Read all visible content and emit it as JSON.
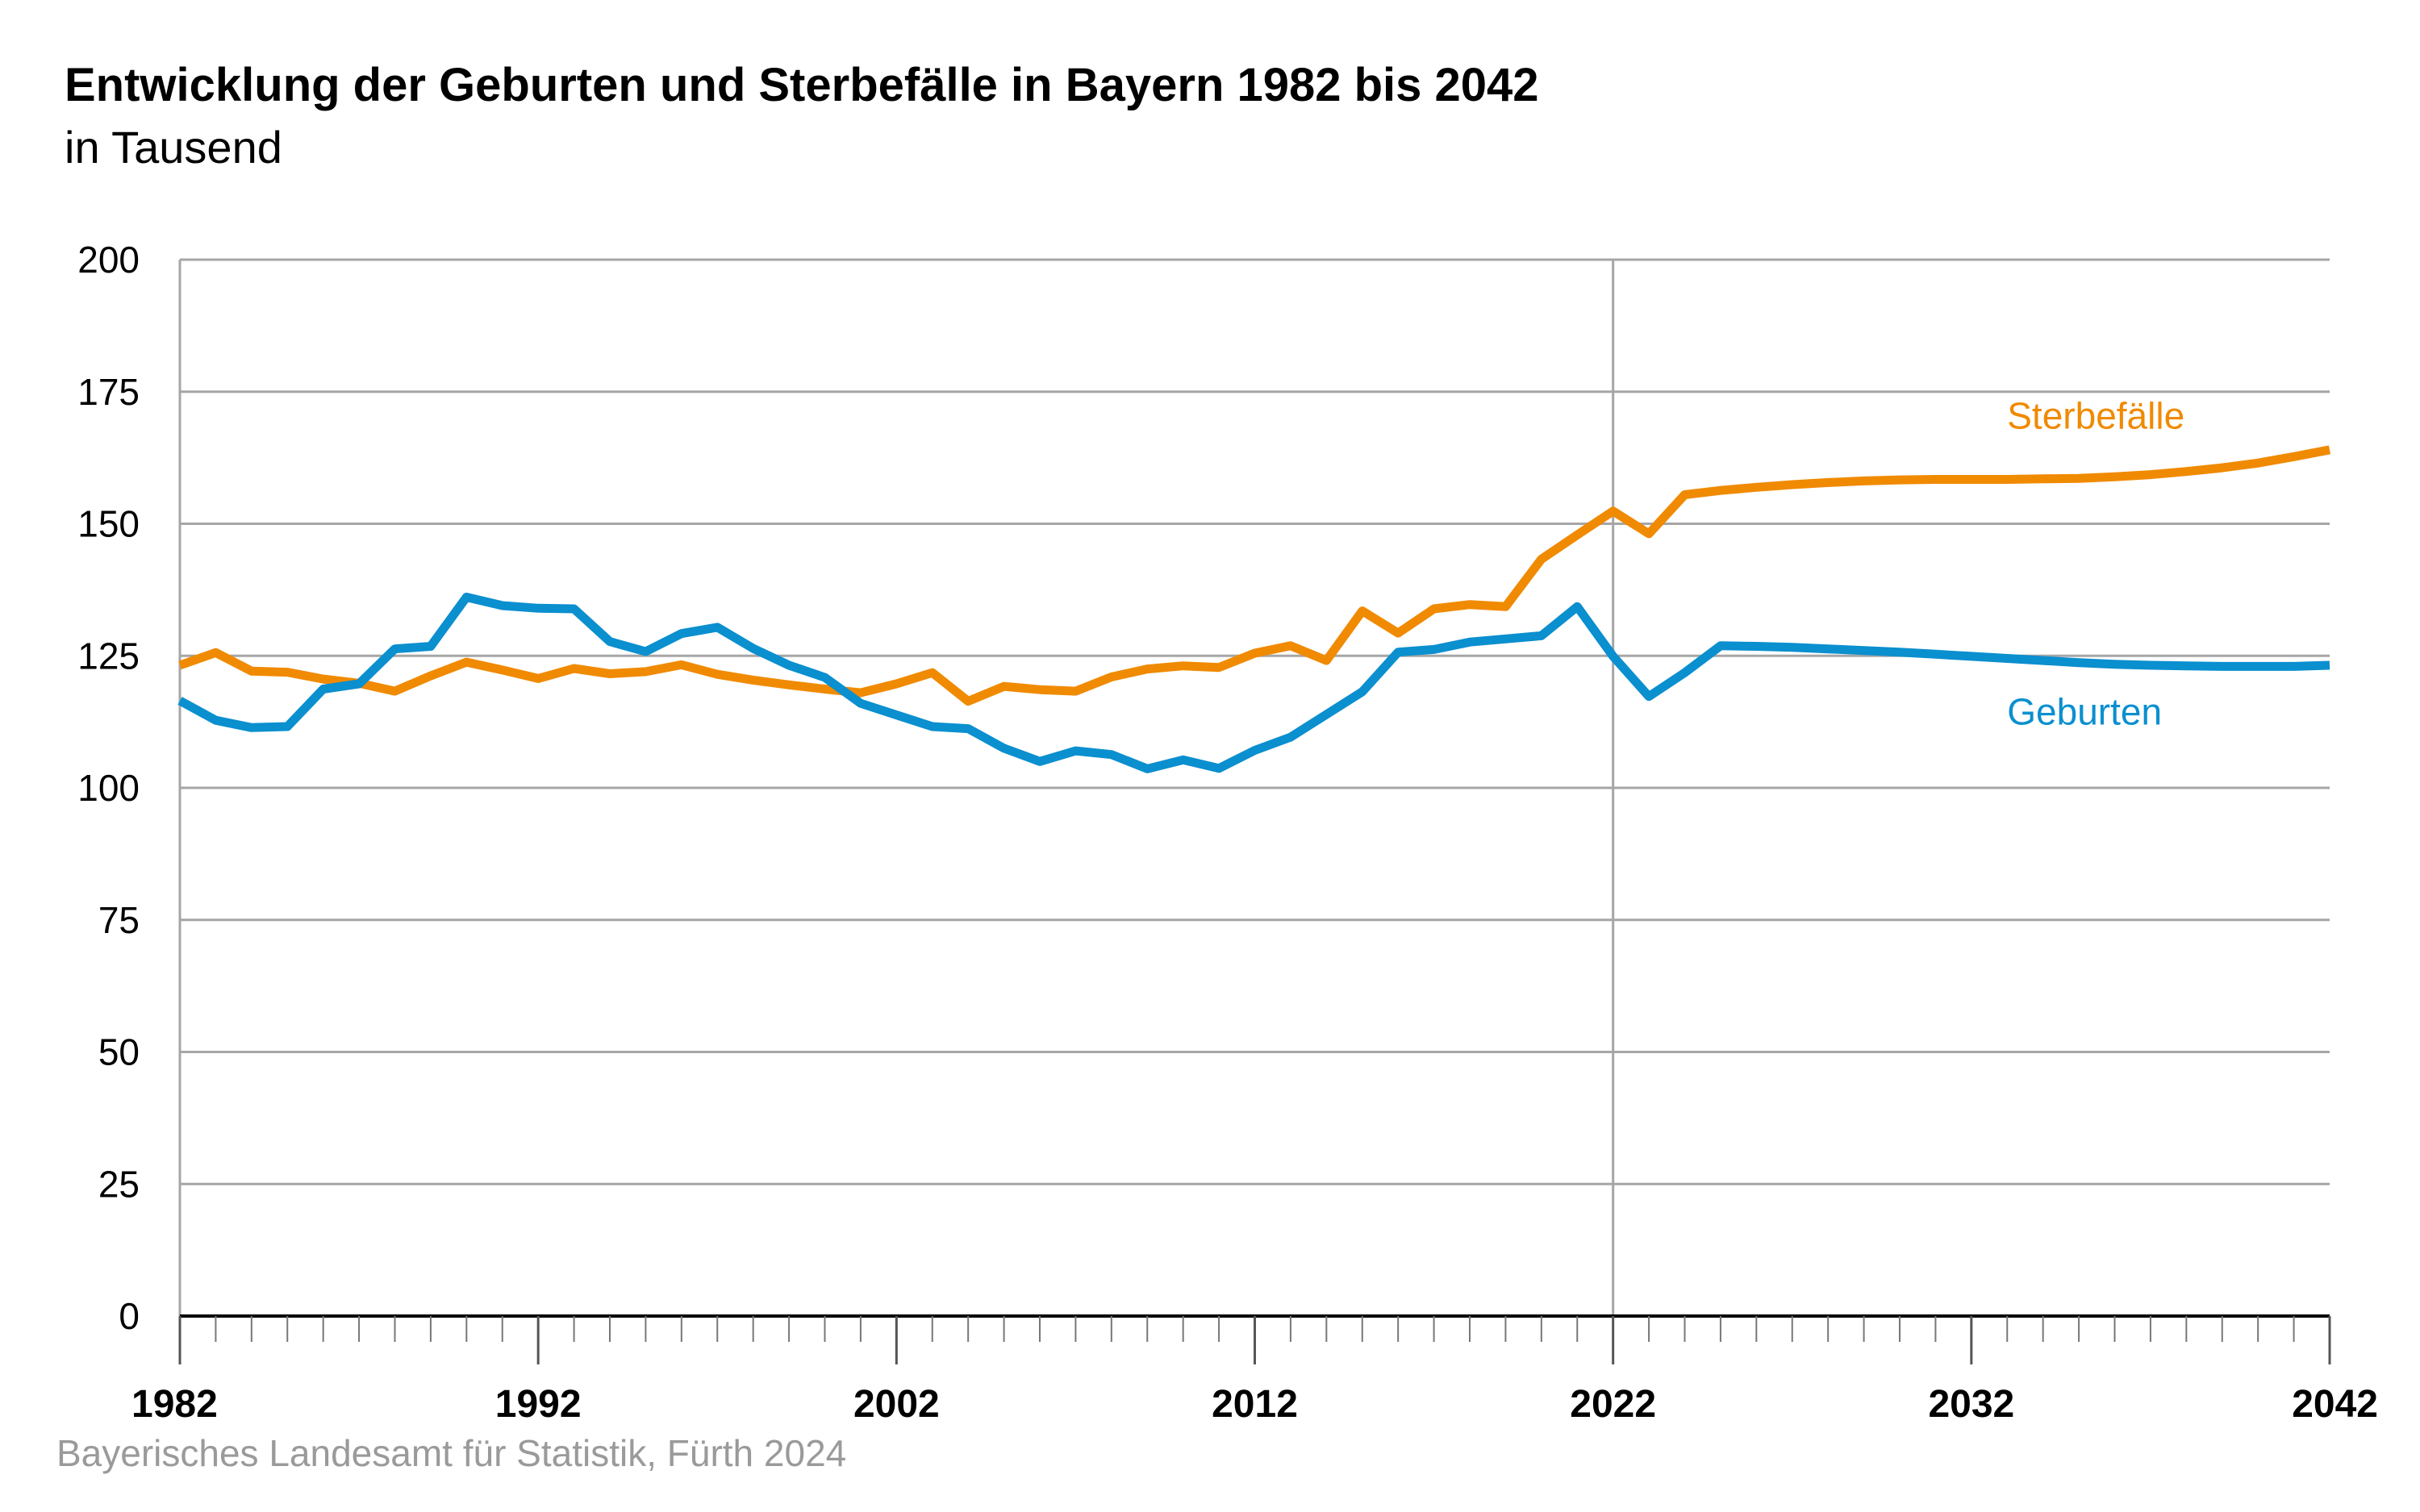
{
  "chart_data": {
    "type": "line",
    "title": "Entwicklung der Geburten und Sterbefälle in Bayern 1982 bis 2042",
    "subtitle": "in Tausend",
    "xlim": [
      1982,
      2042
    ],
    "ylim": [
      0,
      200
    ],
    "yticks": [
      "0",
      "25",
      "50",
      "75",
      "100",
      "125",
      "150",
      "175",
      "200"
    ],
    "ytick_values": [
      0,
      25,
      50,
      75,
      100,
      125,
      150,
      175,
      200
    ],
    "xticks": [
      "1982",
      "1992",
      "2002",
      "2012",
      "2022",
      "2032",
      "2042"
    ],
    "xtick_values": [
      1982,
      1992,
      2002,
      2012,
      2022,
      2032,
      2042
    ],
    "reference_line_x": 2022,
    "grid": "horizontal",
    "series": [
      {
        "name": "Sterbefälle",
        "color": "#f08a00",
        "label_anchor": [
          2033,
          168
        ],
        "points": [
          [
            1982,
            123.2
          ],
          [
            1983,
            125.6
          ],
          [
            1984,
            122.1
          ],
          [
            1985,
            121.9
          ],
          [
            1986,
            120.6
          ],
          [
            1987,
            119.8
          ],
          [
            1988,
            118.3
          ],
          [
            1989,
            121.2
          ],
          [
            1990,
            123.8
          ],
          [
            1991,
            122.3
          ],
          [
            1992,
            120.7
          ],
          [
            1993,
            122.6
          ],
          [
            1994,
            121.6
          ],
          [
            1995,
            122.0
          ],
          [
            1996,
            123.3
          ],
          [
            1997,
            121.5
          ],
          [
            1998,
            120.4
          ],
          [
            1999,
            119.5
          ],
          [
            2000,
            118.7
          ],
          [
            2001,
            118.0
          ],
          [
            2002,
            119.7
          ],
          [
            2003,
            121.8
          ],
          [
            2004,
            116.4
          ],
          [
            2005,
            119.2
          ],
          [
            2006,
            118.6
          ],
          [
            2007,
            118.3
          ],
          [
            2008,
            121.0
          ],
          [
            2009,
            122.5
          ],
          [
            2010,
            123.1
          ],
          [
            2011,
            122.8
          ],
          [
            2012,
            125.5
          ],
          [
            2013,
            126.9
          ],
          [
            2014,
            124.1
          ],
          [
            2015,
            133.5
          ],
          [
            2016,
            129.3
          ],
          [
            2017,
            133.9
          ],
          [
            2018,
            134.7
          ],
          [
            2019,
            134.3
          ],
          [
            2020,
            143.3
          ],
          [
            2021,
            147.9
          ],
          [
            2022,
            152.4
          ],
          [
            2023,
            148.1
          ],
          [
            2024,
            155.5
          ],
          [
            2025,
            156.3
          ],
          [
            2026,
            156.9
          ],
          [
            2027,
            157.4
          ],
          [
            2028,
            157.8
          ],
          [
            2029,
            158.1
          ],
          [
            2030,
            158.3
          ],
          [
            2031,
            158.4
          ],
          [
            2032,
            158.4
          ],
          [
            2033,
            158.4
          ],
          [
            2034,
            158.5
          ],
          [
            2035,
            158.6
          ],
          [
            2036,
            158.9
          ],
          [
            2037,
            159.3
          ],
          [
            2038,
            159.9
          ],
          [
            2039,
            160.6
          ],
          [
            2040,
            161.5
          ],
          [
            2041,
            162.7
          ],
          [
            2042,
            164.0
          ]
        ]
      },
      {
        "name": "Geburten",
        "color": "#0a8fcf",
        "label_anchor": [
          2033,
          112
        ],
        "points": [
          [
            1982,
            116.5
          ],
          [
            1983,
            112.8
          ],
          [
            1984,
            111.4
          ],
          [
            1985,
            111.6
          ],
          [
            1986,
            118.7
          ],
          [
            1987,
            119.7
          ],
          [
            1988,
            126.3
          ],
          [
            1989,
            126.8
          ],
          [
            1990,
            136.1
          ],
          [
            1991,
            134.5
          ],
          [
            1992,
            134.0
          ],
          [
            1993,
            133.9
          ],
          [
            1994,
            127.7
          ],
          [
            1995,
            125.8
          ],
          [
            1996,
            129.2
          ],
          [
            1997,
            130.4
          ],
          [
            1998,
            126.4
          ],
          [
            1999,
            123.2
          ],
          [
            2000,
            120.9
          ],
          [
            2001,
            116.0
          ],
          [
            2002,
            113.8
          ],
          [
            2003,
            111.6
          ],
          [
            2004,
            111.2
          ],
          [
            2005,
            107.5
          ],
          [
            2006,
            105.0
          ],
          [
            2007,
            107.0
          ],
          [
            2008,
            106.3
          ],
          [
            2009,
            103.6
          ],
          [
            2010,
            105.3
          ],
          [
            2011,
            103.7
          ],
          [
            2012,
            107.1
          ],
          [
            2013,
            109.6
          ],
          [
            2014,
            113.9
          ],
          [
            2015,
            118.2
          ],
          [
            2016,
            125.7
          ],
          [
            2017,
            126.2
          ],
          [
            2018,
            127.6
          ],
          [
            2019,
            128.2
          ],
          [
            2020,
            128.8
          ],
          [
            2021,
            134.3
          ],
          [
            2022,
            124.9
          ],
          [
            2023,
            117.3
          ],
          [
            2024,
            121.8
          ],
          [
            2025,
            126.9
          ],
          [
            2026,
            126.8
          ],
          [
            2027,
            126.6
          ],
          [
            2028,
            126.3
          ],
          [
            2029,
            126.0
          ],
          [
            2030,
            125.7
          ],
          [
            2031,
            125.3
          ],
          [
            2032,
            124.9
          ],
          [
            2033,
            124.5
          ],
          [
            2034,
            124.1
          ],
          [
            2035,
            123.7
          ],
          [
            2036,
            123.4
          ],
          [
            2037,
            123.2
          ],
          [
            2038,
            123.1
          ],
          [
            2039,
            123.0
          ],
          [
            2040,
            123.0
          ],
          [
            2041,
            123.0
          ],
          [
            2042,
            123.2
          ]
        ]
      }
    ]
  },
  "source": "Bayerisches Landesamt für Statistik, Fürth 2024"
}
